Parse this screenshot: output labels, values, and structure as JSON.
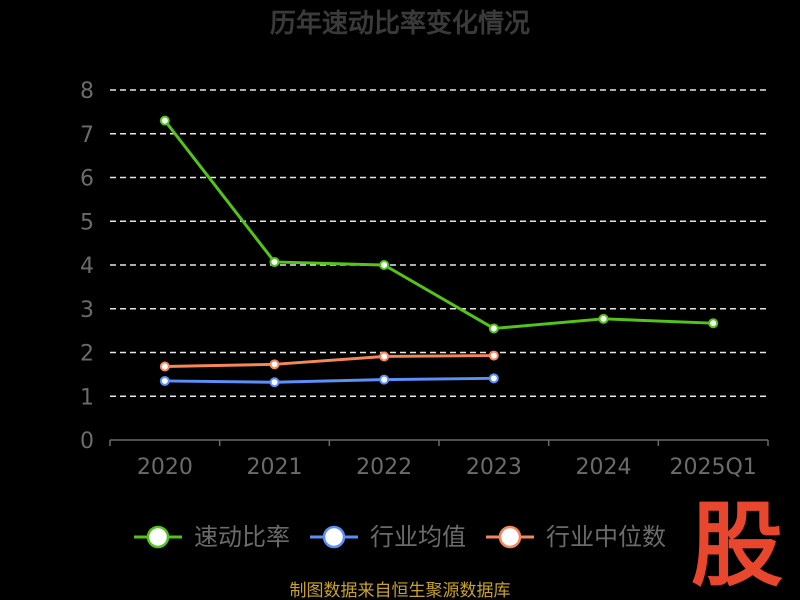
{
  "chart_data": {
    "type": "line",
    "title": "历年速动比率变化情况",
    "categories": [
      "2020",
      "2021",
      "2022",
      "2023",
      "2024",
      "2025Q1"
    ],
    "ylim": [
      0,
      8
    ],
    "yticks": [
      "0",
      "1",
      "2",
      "3",
      "4",
      "5",
      "6",
      "7",
      "8"
    ],
    "grid": true,
    "legend_position": "bottom",
    "series": [
      {
        "name": "速动比率",
        "color": "#52c41a",
        "values": [
          7.3,
          4.07,
          4.0,
          2.55,
          2.77,
          2.67
        ]
      },
      {
        "name": "行业均值",
        "color": "#5b8ff9",
        "values": [
          1.35,
          1.32,
          1.38,
          1.41,
          null,
          null
        ]
      },
      {
        "name": "行业中位数",
        "color": "#f6875a",
        "values": [
          1.68,
          1.73,
          1.91,
          1.93,
          null,
          null
        ]
      }
    ]
  },
  "watermark": "股",
  "source": "制图数据来自恒生聚源数据库"
}
